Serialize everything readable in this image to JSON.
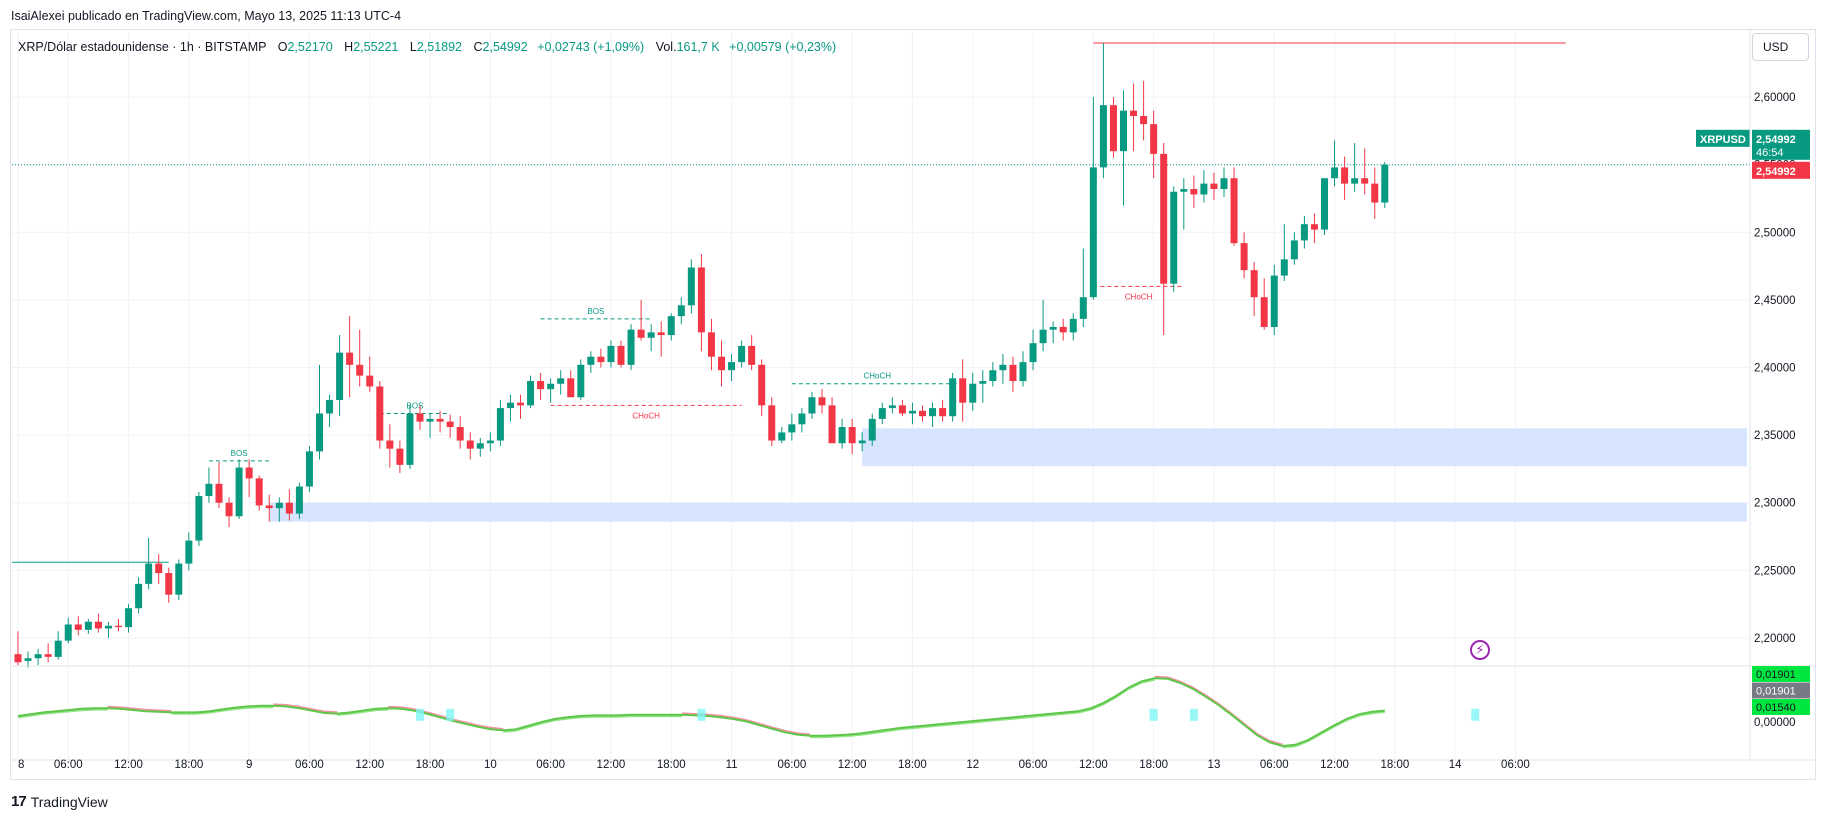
{
  "publisher_line": "IsaiAlexei publicado en TradingView.com, Mayo 13, 2025 11:13 UTC-4",
  "legend": {
    "symbol": "XRP/Dólar estadounidense · 1h · BITSTAMP",
    "o_label": "O",
    "o_value": "2,52170",
    "h_label": "H",
    "h_value": "2,55221",
    "l_label": "L",
    "l_value": "2,51892",
    "c_label": "C",
    "c_value": "2,54992",
    "change": "+0,02743 (+1,09%)",
    "vol_label": "Vol.",
    "vol_value": "161,7 K",
    "vol_change": "+0,00579 (+0,23%)"
  },
  "currency": "USD",
  "footer_brand": "TradingView",
  "colors": {
    "up": "#089981",
    "down": "#f23645",
    "zone": "#d6e4ff",
    "osc_up": "#4cd137",
    "osc_down": "#e84a5f",
    "cyan_marker": "#7ff5f5",
    "grid": "#f0f3fa"
  },
  "chart_data": [
    {
      "type": "candlestick",
      "symbol": "XRPUSD",
      "timeframe": "1h",
      "price_scale": {
        "ylim": [
          2.18,
          2.64
        ],
        "ticks": [
          "2,20000",
          "2,25000",
          "2,30000",
          "2,35000",
          "2,40000",
          "2,45000",
          "2,50000",
          "2,55000",
          "2,60000"
        ]
      },
      "x_ticks": [
        {
          "i": 0,
          "label": "8"
        },
        {
          "i": 5,
          "label": "06:00"
        },
        {
          "i": 11,
          "label": "12:00"
        },
        {
          "i": 17,
          "label": "18:00"
        },
        {
          "i": 23,
          "label": "9"
        },
        {
          "i": 29,
          "label": "06:00"
        },
        {
          "i": 35,
          "label": "12:00"
        },
        {
          "i": 41,
          "label": "18:00"
        },
        {
          "i": 47,
          "label": "10"
        },
        {
          "i": 53,
          "label": "06:00"
        },
        {
          "i": 59,
          "label": "12:00"
        },
        {
          "i": 65,
          "label": "18:00"
        },
        {
          "i": 71,
          "label": "11"
        },
        {
          "i": 77,
          "label": "06:00"
        },
        {
          "i": 83,
          "label": "12:00"
        },
        {
          "i": 89,
          "label": "18:00"
        },
        {
          "i": 95,
          "label": "12"
        },
        {
          "i": 101,
          "label": "06:00"
        },
        {
          "i": 107,
          "label": "12:00"
        },
        {
          "i": 113,
          "label": "18:00"
        },
        {
          "i": 119,
          "label": "13"
        },
        {
          "i": 125,
          "label": "06:00"
        },
        {
          "i": 131,
          "label": "12:00"
        },
        {
          "i": 137,
          "label": "18:00"
        },
        {
          "i": 143,
          "label": "14"
        },
        {
          "i": 149,
          "label": "06:00"
        }
      ],
      "candles": [
        [
          2.188,
          2.205,
          2.18,
          2.182
        ],
        [
          2.183,
          2.19,
          2.178,
          2.185
        ],
        [
          2.185,
          2.192,
          2.18,
          2.188
        ],
        [
          2.188,
          2.196,
          2.182,
          2.186
        ],
        [
          2.186,
          2.205,
          2.184,
          2.198
        ],
        [
          2.198,
          2.215,
          2.196,
          2.21
        ],
        [
          2.21,
          2.216,
          2.202,
          2.206
        ],
        [
          2.206,
          2.214,
          2.203,
          2.212
        ],
        [
          2.212,
          2.218,
          2.204,
          2.207
        ],
        [
          2.207,
          2.212,
          2.2,
          2.209
        ],
        [
          2.209,
          2.214,
          2.205,
          2.208
        ],
        [
          2.208,
          2.225,
          2.204,
          2.222
        ],
        [
          2.222,
          2.245,
          2.218,
          2.24
        ],
        [
          2.24,
          2.274,
          2.236,
          2.255
        ],
        [
          2.255,
          2.262,
          2.24,
          2.248
        ],
        [
          2.248,
          2.252,
          2.226,
          2.232
        ],
        [
          2.232,
          2.258,
          2.228,
          2.255
        ],
        [
          2.255,
          2.278,
          2.25,
          2.272
        ],
        [
          2.272,
          2.308,
          2.268,
          2.305
        ],
        [
          2.305,
          2.326,
          2.3,
          2.314
        ],
        [
          2.314,
          2.33,
          2.296,
          2.3
        ],
        [
          2.3,
          2.304,
          2.282,
          2.29
        ],
        [
          2.29,
          2.332,
          2.288,
          2.326
        ],
        [
          2.326,
          2.332,
          2.304,
          2.318
        ],
        [
          2.318,
          2.32,
          2.294,
          2.298
        ],
        [
          2.298,
          2.306,
          2.286,
          2.296
        ],
        [
          2.296,
          2.304,
          2.286,
          2.3
        ],
        [
          2.3,
          2.31,
          2.287,
          2.292
        ],
        [
          2.292,
          2.315,
          2.288,
          2.312
        ],
        [
          2.312,
          2.342,
          2.308,
          2.338
        ],
        [
          2.338,
          2.402,
          2.332,
          2.366
        ],
        [
          2.366,
          2.38,
          2.356,
          2.376
        ],
        [
          2.376,
          2.424,
          2.364,
          2.411
        ],
        [
          2.411,
          2.438,
          2.378,
          2.402
        ],
        [
          2.402,
          2.428,
          2.386,
          2.394
        ],
        [
          2.394,
          2.408,
          2.382,
          2.386
        ],
        [
          2.386,
          2.39,
          2.34,
          2.346
        ],
        [
          2.346,
          2.358,
          2.326,
          2.34
        ],
        [
          2.34,
          2.346,
          2.322,
          2.328
        ],
        [
          2.328,
          2.372,
          2.325,
          2.366
        ],
        [
          2.366,
          2.372,
          2.354,
          2.36
        ],
        [
          2.36,
          2.366,
          2.348,
          2.362
        ],
        [
          2.362,
          2.368,
          2.352,
          2.36
        ],
        [
          2.36,
          2.365,
          2.348,
          2.356
        ],
        [
          2.356,
          2.364,
          2.34,
          2.346
        ],
        [
          2.346,
          2.352,
          2.332,
          2.34
        ],
        [
          2.34,
          2.348,
          2.334,
          2.344
        ],
        [
          2.344,
          2.352,
          2.338,
          2.346
        ],
        [
          2.346,
          2.376,
          2.342,
          2.37
        ],
        [
          2.37,
          2.38,
          2.36,
          2.374
        ],
        [
          2.374,
          2.38,
          2.362,
          2.372
        ],
        [
          2.372,
          2.394,
          2.37,
          2.39
        ],
        [
          2.39,
          2.396,
          2.376,
          2.384
        ],
        [
          2.384,
          2.392,
          2.374,
          2.388
        ],
        [
          2.388,
          2.398,
          2.38,
          2.392
        ],
        [
          2.392,
          2.398,
          2.38,
          2.378
        ],
        [
          2.378,
          2.406,
          2.376,
          2.402
        ],
        [
          2.402,
          2.412,
          2.396,
          2.408
        ],
        [
          2.408,
          2.414,
          2.4,
          2.404
        ],
        [
          2.404,
          2.42,
          2.4,
          2.416
        ],
        [
          2.416,
          2.42,
          2.4,
          2.402
        ],
        [
          2.402,
          2.432,
          2.398,
          2.428
        ],
        [
          2.428,
          2.45,
          2.42,
          2.422
        ],
        [
          2.422,
          2.432,
          2.412,
          2.426
        ],
        [
          2.426,
          2.434,
          2.408,
          2.424
        ],
        [
          2.424,
          2.44,
          2.42,
          2.438
        ],
        [
          2.438,
          2.452,
          2.432,
          2.446
        ],
        [
          2.446,
          2.48,
          2.44,
          2.474
        ],
        [
          2.474,
          2.484,
          2.412,
          2.426
        ],
        [
          2.426,
          2.436,
          2.398,
          2.408
        ],
        [
          2.408,
          2.42,
          2.386,
          2.398
        ],
        [
          2.398,
          2.41,
          2.39,
          2.404
        ],
        [
          2.404,
          2.42,
          2.4,
          2.416
        ],
        [
          2.416,
          2.424,
          2.398,
          2.402
        ],
        [
          2.402,
          2.406,
          2.364,
          2.372
        ],
        [
          2.372,
          2.378,
          2.342,
          2.346
        ],
        [
          2.346,
          2.356,
          2.344,
          2.352
        ],
        [
          2.352,
          2.366,
          2.346,
          2.358
        ],
        [
          2.358,
          2.37,
          2.352,
          2.366
        ],
        [
          2.366,
          2.382,
          2.362,
          2.378
        ],
        [
          2.378,
          2.384,
          2.366,
          2.372
        ],
        [
          2.372,
          2.378,
          2.346,
          2.344
        ],
        [
          2.344,
          2.362,
          2.34,
          2.356
        ],
        [
          2.356,
          2.362,
          2.336,
          2.344
        ],
        [
          2.344,
          2.352,
          2.338,
          2.346
        ],
        [
          2.346,
          2.366,
          2.342,
          2.362
        ],
        [
          2.362,
          2.374,
          2.358,
          2.37
        ],
        [
          2.37,
          2.378,
          2.366,
          2.372
        ],
        [
          2.372,
          2.376,
          2.364,
          2.366
        ],
        [
          2.366,
          2.374,
          2.358,
          2.368
        ],
        [
          2.368,
          2.372,
          2.36,
          2.364
        ],
        [
          2.364,
          2.374,
          2.356,
          2.37
        ],
        [
          2.37,
          2.376,
          2.36,
          2.364
        ],
        [
          2.364,
          2.396,
          2.36,
          2.392
        ],
        [
          2.392,
          2.406,
          2.36,
          2.374
        ],
        [
          2.374,
          2.396,
          2.368,
          2.388
        ],
        [
          2.388,
          2.398,
          2.374,
          2.39
        ],
        [
          2.39,
          2.404,
          2.386,
          2.398
        ],
        [
          2.398,
          2.41,
          2.388,
          2.402
        ],
        [
          2.402,
          2.408,
          2.382,
          2.39
        ],
        [
          2.39,
          2.412,
          2.386,
          2.404
        ],
        [
          2.404,
          2.428,
          2.398,
          2.418
        ],
        [
          2.418,
          2.45,
          2.412,
          2.428
        ],
        [
          2.428,
          2.434,
          2.418,
          2.43
        ],
        [
          2.43,
          2.436,
          2.42,
          2.426
        ],
        [
          2.426,
          2.44,
          2.42,
          2.436
        ],
        [
          2.436,
          2.488,
          2.43,
          2.452
        ],
        [
          2.452,
          2.6,
          2.45,
          2.548
        ],
        [
          2.548,
          2.64,
          2.54,
          2.594
        ],
        [
          2.594,
          2.6,
          2.555,
          2.56
        ],
        [
          2.56,
          2.605,
          2.52,
          2.59
        ],
        [
          2.59,
          2.61,
          2.56,
          2.586
        ],
        [
          2.586,
          2.612,
          2.568,
          2.58
        ],
        [
          2.58,
          2.59,
          2.54,
          2.558
        ],
        [
          2.558,
          2.566,
          2.424,
          2.462
        ],
        [
          2.462,
          2.534,
          2.456,
          2.53
        ],
        [
          2.53,
          2.54,
          2.502,
          2.532
        ],
        [
          2.532,
          2.542,
          2.518,
          2.528
        ],
        [
          2.528,
          2.546,
          2.522,
          2.536
        ],
        [
          2.536,
          2.544,
          2.524,
          2.532
        ],
        [
          2.532,
          2.548,
          2.526,
          2.54
        ],
        [
          2.54,
          2.548,
          2.49,
          2.492
        ],
        [
          2.492,
          2.5,
          2.466,
          2.472
        ],
        [
          2.472,
          2.478,
          2.438,
          2.452
        ],
        [
          2.452,
          2.466,
          2.428,
          2.43
        ],
        [
          2.43,
          2.476,
          2.424,
          2.468
        ],
        [
          2.468,
          2.506,
          2.464,
          2.48
        ],
        [
          2.48,
          2.5,
          2.476,
          2.494
        ],
        [
          2.494,
          2.512,
          2.488,
          2.506
        ],
        [
          2.506,
          2.514,
          2.492,
          2.502
        ],
        [
          2.502,
          2.54,
          2.498,
          2.54
        ],
        [
          2.54,
          2.568,
          2.534,
          2.548
        ],
        [
          2.548,
          2.556,
          2.524,
          2.536
        ],
        [
          2.536,
          2.566,
          2.53,
          2.54
        ],
        [
          2.54,
          2.562,
          2.528,
          2.536
        ],
        [
          2.536,
          2.548,
          2.51,
          2.522
        ],
        [
          2.522,
          2.552,
          2.518,
          2.55
        ]
      ],
      "markers": [
        {
          "label": "BOS",
          "kind": "up",
          "y": 2.331,
          "x_from": 19,
          "x_to": 25
        },
        {
          "label": "BOS",
          "kind": "up",
          "y": 2.366,
          "x_from": 36,
          "x_to": 43
        },
        {
          "label": "BOS",
          "kind": "up",
          "y": 2.436,
          "x_from": 52,
          "x_to": 63
        },
        {
          "label": "CHoCH",
          "kind": "down",
          "y": 2.372,
          "x_from": 53,
          "x_to": 72
        },
        {
          "label": "CHoCH",
          "kind": "up",
          "y": 2.388,
          "x_from": 77,
          "x_to": 94
        },
        {
          "label": "CHoCH",
          "kind": "down",
          "y": 2.46,
          "x_from": 107,
          "x_to": 116
        }
      ],
      "zones": [
        {
          "y_low": 2.286,
          "y_high": 2.3,
          "x_from": 25
        },
        {
          "y_low": 2.327,
          "y_high": 2.355,
          "x_from": 84
        }
      ],
      "levels": [
        {
          "y": 2.256,
          "x_from": 0,
          "x_to": 15,
          "kind": "up"
        },
        {
          "y": 2.64,
          "x_from": 107,
          "x_to": 154,
          "kind": "down"
        }
      ],
      "last_price_line": 2.54992,
      "price_badges": [
        {
          "text": "XRPUSD",
          "kind": "up-label"
        },
        {
          "text": "2,54992",
          "sub": "46:54",
          "kind": "up"
        },
        {
          "text": "2,54992",
          "kind": "down"
        }
      ]
    },
    {
      "type": "oscillator",
      "ylim": [
        -0.05,
        0.09
      ],
      "ticks": [
        "0,00000"
      ],
      "badges": [
        "0,01901",
        "0,01901",
        "0,01540"
      ],
      "values": [
        0.01,
        0.013,
        0.016,
        0.018,
        0.02,
        0.022,
        0.023,
        0.023,
        0.022,
        0.02,
        0.018,
        0.017,
        0.016,
        0.016,
        0.016,
        0.018,
        0.021,
        0.024,
        0.026,
        0.027,
        0.027,
        0.026,
        0.023,
        0.019,
        0.015,
        0.014,
        0.016,
        0.019,
        0.022,
        0.023,
        0.022,
        0.019,
        0.014,
        0.008,
        0.002,
        -0.003,
        -0.008,
        -0.012,
        -0.014,
        -0.012,
        -0.006,
        0.0,
        0.005,
        0.008,
        0.01,
        0.011,
        0.011,
        0.011,
        0.012,
        0.012,
        0.012,
        0.012,
        0.012,
        0.011,
        0.01,
        0.008,
        0.005,
        0.001,
        -0.005,
        -0.011,
        -0.017,
        -0.021,
        -0.023,
        -0.023,
        -0.022,
        -0.021,
        -0.019,
        -0.016,
        -0.013,
        -0.01,
        -0.008,
        -0.006,
        -0.004,
        -0.002,
        0.0,
        0.002,
        0.004,
        0.006,
        0.008,
        0.01,
        0.012,
        0.014,
        0.016,
        0.018,
        0.023,
        0.032,
        0.044,
        0.058,
        0.068,
        0.073,
        0.072,
        0.065,
        0.055,
        0.042,
        0.028,
        0.012,
        -0.005,
        -0.022,
        -0.034,
        -0.04,
        -0.038,
        -0.03,
        -0.018,
        -0.006,
        0.005,
        0.013,
        0.017,
        0.019
      ]
    }
  ]
}
